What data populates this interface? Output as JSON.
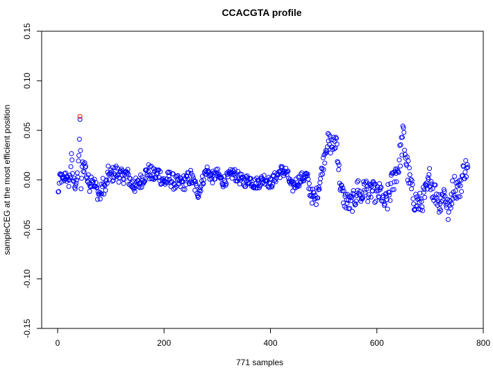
{
  "chart_data": {
    "type": "scatter",
    "title": "CCACGTA profile",
    "xlabel": "771 samples",
    "ylabel": "sampleCEG at the most efficient position",
    "xlim": [
      -30,
      800
    ],
    "ylim": [
      -0.15,
      0.15
    ],
    "xticks": [
      0,
      200,
      400,
      600,
      800
    ],
    "xtick_labels": [
      "0",
      "200",
      "400",
      "600",
      "800"
    ],
    "yticks": [
      -0.15,
      -0.1,
      -0.05,
      0.0,
      0.05,
      0.1,
      0.15
    ],
    "ytick_labels": [
      "-0.15",
      "-0.10",
      "-0.05",
      "0.00",
      "0.05",
      "0.10",
      "0.15"
    ],
    "grid": false,
    "colors": {
      "points": "#0000ff",
      "highlight": "#ff0000"
    },
    "highlight": {
      "x": 42,
      "y": 0.064
    },
    "anchors": [
      [
        1,
        -0.014
      ],
      [
        5,
        0.004
      ],
      [
        10,
        -0.002
      ],
      [
        15,
        0.006
      ],
      [
        20,
        -0.004
      ],
      [
        24,
        0.004
      ],
      [
        26,
        0.028
      ],
      [
        28,
        0.002
      ],
      [
        33,
        -0.005
      ],
      [
        38,
        0.003
      ],
      [
        42,
        0.055
      ],
      [
        44,
        -0.006
      ],
      [
        47,
        0.015
      ],
      [
        52,
        0.014
      ],
      [
        56,
        0.0
      ],
      [
        60,
        -0.004
      ],
      [
        65,
        0.003
      ],
      [
        70,
        -0.006
      ],
      [
        75,
        -0.012
      ],
      [
        80,
        -0.016
      ],
      [
        85,
        -0.005
      ],
      [
        90,
        -0.009
      ],
      [
        95,
        0.006
      ],
      [
        100,
        0.004
      ],
      [
        110,
        0.008
      ],
      [
        120,
        0.003
      ],
      [
        130,
        0.006
      ],
      [
        140,
        -0.005
      ],
      [
        150,
        -0.006
      ],
      [
        160,
        0.002
      ],
      [
        170,
        0.009
      ],
      [
        180,
        0.004
      ],
      [
        190,
        0.007
      ],
      [
        200,
        -0.003
      ],
      [
        210,
        0.002
      ],
      [
        220,
        -0.003
      ],
      [
        230,
        -0.004
      ],
      [
        240,
        -0.002
      ],
      [
        250,
        0.003
      ],
      [
        260,
        -0.008
      ],
      [
        265,
        -0.014
      ],
      [
        270,
        -0.004
      ],
      [
        280,
        0.01
      ],
      [
        290,
        0.002
      ],
      [
        300,
        0.006
      ],
      [
        310,
        -0.002
      ],
      [
        320,
        0.002
      ],
      [
        330,
        0.007
      ],
      [
        340,
        0.002
      ],
      [
        350,
        -0.002
      ],
      [
        360,
        0.001
      ],
      [
        370,
        -0.004
      ],
      [
        380,
        -0.002
      ],
      [
        390,
        0.002
      ],
      [
        400,
        -0.004
      ],
      [
        410,
        0.003
      ],
      [
        420,
        0.009
      ],
      [
        430,
        0.008
      ],
      [
        440,
        -0.008
      ],
      [
        450,
        -0.002
      ],
      [
        460,
        0.002
      ],
      [
        468,
        0.004
      ],
      [
        472,
        -0.006
      ],
      [
        478,
        -0.016
      ],
      [
        485,
        -0.02
      ],
      [
        490,
        -0.008
      ],
      [
        495,
        0.004
      ],
      [
        500,
        0.02
      ],
      [
        505,
        0.036
      ],
      [
        510,
        0.038
      ],
      [
        515,
        0.034
      ],
      [
        520,
        0.035
      ],
      [
        524,
        0.042
      ],
      [
        528,
        0.014
      ],
      [
        532,
        -0.01
      ],
      [
        540,
        -0.02
      ],
      [
        550,
        -0.025
      ],
      [
        560,
        -0.018
      ],
      [
        565,
        -0.005
      ],
      [
        570,
        -0.02
      ],
      [
        578,
        -0.005
      ],
      [
        585,
        -0.015
      ],
      [
        590,
        -0.01
      ],
      [
        600,
        -0.015
      ],
      [
        608,
        -0.012
      ],
      [
        612,
        -0.025
      ],
      [
        620,
        -0.02
      ],
      [
        628,
        -0.005
      ],
      [
        635,
        0.008
      ],
      [
        640,
        0.012
      ],
      [
        645,
        0.03
      ],
      [
        650,
        0.045
      ],
      [
        655,
        0.02
      ],
      [
        660,
        0.004
      ],
      [
        665,
        -0.01
      ],
      [
        670,
        -0.02
      ],
      [
        680,
        -0.025
      ],
      [
        688,
        -0.018
      ],
      [
        695,
        -0.01
      ],
      [
        700,
        0.005
      ],
      [
        705,
        -0.01
      ],
      [
        712,
        -0.015
      ],
      [
        720,
        -0.025
      ],
      [
        725,
        -0.01
      ],
      [
        730,
        -0.02
      ],
      [
        735,
        -0.035
      ],
      [
        740,
        -0.015
      ],
      [
        745,
        -0.005
      ],
      [
        750,
        -0.008
      ],
      [
        755,
        -0.01
      ],
      [
        760,
        0.002
      ],
      [
        765,
        0.012
      ],
      [
        770,
        0.01
      ]
    ],
    "noise": [
      [
        0,
        40,
        0.006
      ],
      [
        40,
        260,
        0.008
      ],
      [
        260,
        470,
        0.006
      ],
      [
        470,
        500,
        0.008
      ],
      [
        500,
        530,
        0.01
      ],
      [
        530,
        620,
        0.01
      ],
      [
        620,
        665,
        0.014
      ],
      [
        665,
        771,
        0.012
      ]
    ],
    "count": 771
  }
}
